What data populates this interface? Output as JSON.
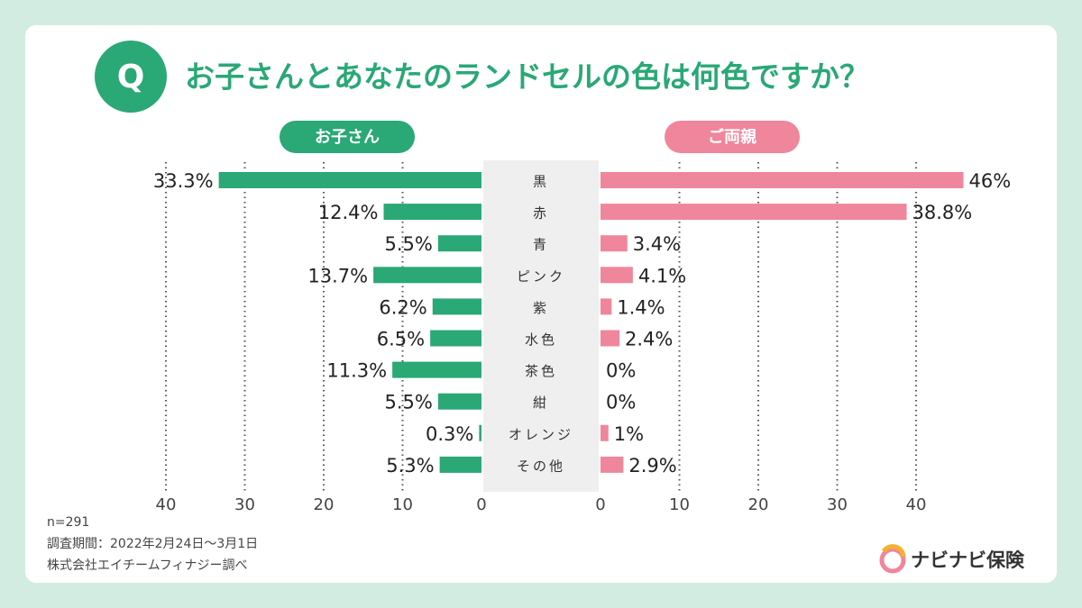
{
  "badge": "Q",
  "chart_data": {
    "type": "butterfly",
    "title": "お子さんとあなたのランドセルの色は何色ですか？",
    "categories": [
      "黒",
      "赤",
      "青",
      "ピンク",
      "紫",
      "水色",
      "茶色",
      "紺",
      "オレンジ",
      "その他"
    ],
    "series": [
      {
        "name": "お子さん",
        "color": "#2aa876",
        "side": "left",
        "values": [
          33.3,
          12.4,
          5.5,
          13.7,
          6.2,
          6.5,
          11.3,
          5.5,
          0.3,
          5.3
        ],
        "value_labels": [
          "33.3%",
          "12.4%",
          "5.5%",
          "13.7%",
          "6.2%",
          "6.5%",
          "11.3%",
          "5.5%",
          "0.3%",
          "5.3%"
        ]
      },
      {
        "name": "ご両親",
        "color": "#f0869b",
        "side": "right",
        "values": [
          46,
          38.8,
          3.4,
          4.1,
          1.4,
          2.4,
          0,
          0,
          1,
          2.9
        ],
        "value_labels": [
          "46%",
          "38.8%",
          "3.4%",
          "4.1%",
          "1.4%",
          "2.4%",
          "0%",
          "0%",
          "1%",
          "2.9%"
        ]
      }
    ],
    "xlim": [
      0,
      40
    ],
    "xticks": [
      0,
      10,
      20,
      30,
      40
    ],
    "grid": true
  },
  "notes": [
    "n=291",
    "調査期間：2022年2月24日～3月1日",
    "株式会社エイチームフィナジー調べ"
  ],
  "logo": "ナビナビ保険"
}
